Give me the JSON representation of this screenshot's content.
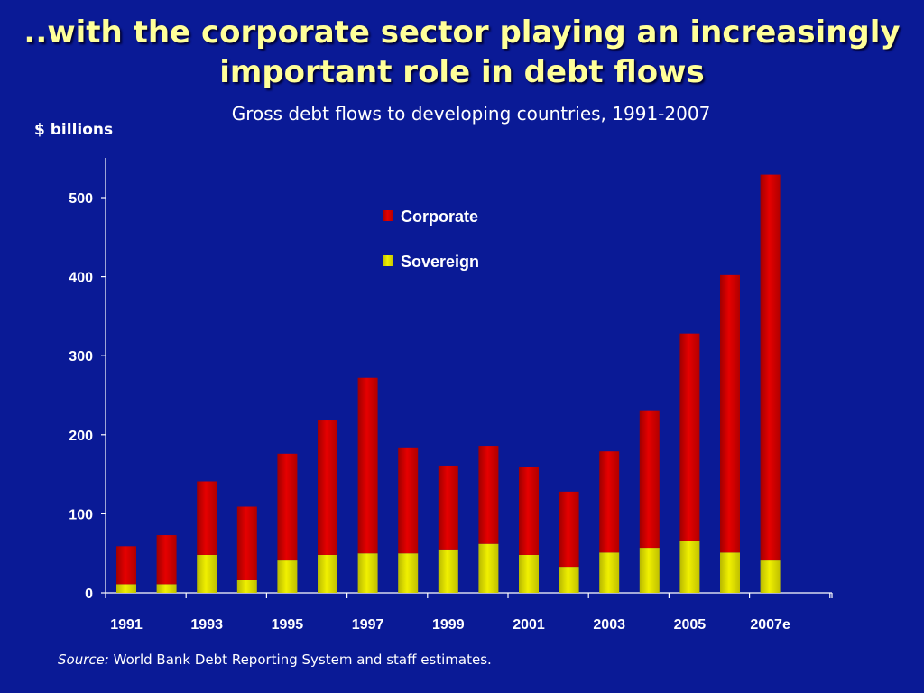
{
  "slide": {
    "title_line1": "..with the corporate sector playing an increasingly",
    "title_line2": "important role in debt flows",
    "subtitle": "Gross debt flows to developing countries, 1991-2007",
    "unit_label": "$ billions",
    "source_label": "Source:",
    "source_text": " World Bank Debt Reporting System and staff estimates."
  },
  "colors": {
    "background": "#0a1a96",
    "corporate": "#e60000",
    "sovereign": "#f0f000",
    "title": "#ffff99"
  },
  "chart_data": {
    "type": "bar",
    "stacked": true,
    "categories": [
      "1991",
      "1992",
      "1993",
      "1994",
      "1995",
      "1996",
      "1997",
      "1998",
      "1999",
      "2000",
      "2001",
      "2002",
      "2003",
      "2004",
      "2005",
      "2006",
      "2007e"
    ],
    "x_tick_labels": [
      "1991",
      "1993",
      "1995",
      "1997",
      "1999",
      "2001",
      "2003",
      "2005",
      "2007e"
    ],
    "series": [
      {
        "name": "Sovereign",
        "values": [
          11,
          11,
          48,
          16,
          41,
          48,
          50,
          50,
          55,
          62,
          48,
          33,
          51,
          57,
          66,
          51,
          41
        ]
      },
      {
        "name": "Corporate",
        "values": [
          48,
          62,
          93,
          93,
          135,
          170,
          222,
          134,
          106,
          124,
          111,
          95,
          128,
          174,
          262,
          351,
          488
        ]
      }
    ],
    "ylim": [
      0,
      550
    ],
    "y_ticks": [
      0,
      100,
      200,
      300,
      400,
      500
    ],
    "legend_position": "top-center",
    "grid": false
  }
}
